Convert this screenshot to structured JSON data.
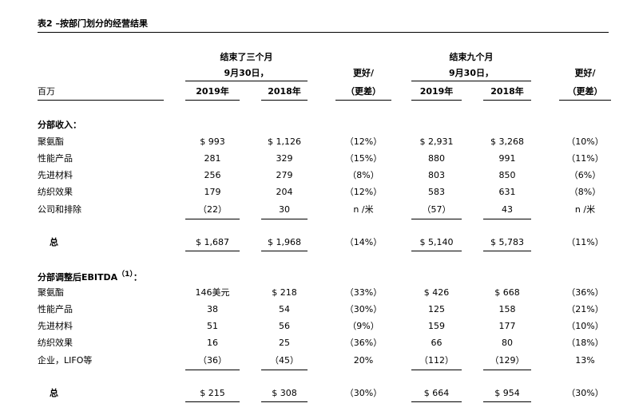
{
  "title": "表2 –按部门划分的经营结果",
  "table": {
    "header": {
      "group_1": [
        "结束了三个月",
        "9月30日，"
      ],
      "change_1": [
        "更好/",
        "（更差）"
      ],
      "group_2": [
        "结束九个月",
        "9月30日，"
      ],
      "change_2": [
        "更好/",
        "（更差）"
      ],
      "unit": "百万",
      "years": [
        "2019年",
        "2018年",
        "2019年",
        "2018年"
      ]
    },
    "sections": [
      {
        "heading": "分部收入：",
        "rows": [
          {
            "label": "聚氨酯",
            "cells": [
              "$ 993",
              "$ 1,126",
              "（12%）",
              "$ 2,931",
              "$ 3,268",
              "（10%）"
            ]
          },
          {
            "label": "性能产品",
            "cells": [
              "281",
              "329",
              "（15%）",
              "880",
              "991",
              "（11%）"
            ]
          },
          {
            "label": "先进材料",
            "cells": [
              "256",
              "279",
              "（8%）",
              "803",
              "850",
              "（6%）"
            ]
          },
          {
            "label": "纺织效果",
            "cells": [
              "179",
              "204",
              "（12%）",
              "583",
              "631",
              "（8%）"
            ]
          },
          {
            "label": "公司和排除",
            "cells": [
              "（22）",
              "30",
              "n /米",
              "（57）",
              "43",
              "n /米"
            ]
          }
        ],
        "total": {
          "label": "总",
          "cells": [
            "$ 1,687",
            "$ 1,968",
            "（14%）",
            "$ 5,140",
            "$ 5,783",
            "（11%）"
          ]
        }
      },
      {
        "heading": "分部调整后EBITDA",
        "note": "（1）",
        "suffix": "：",
        "rows": [
          {
            "label": "聚氨酯",
            "cells": [
              "146美元",
              "$ 218",
              "（33%）",
              "$ 426",
              "$ 668",
              "（36%）"
            ]
          },
          {
            "label": "性能产品",
            "cells": [
              "38",
              "54",
              "（30%）",
              "125",
              "158",
              "（21%）"
            ]
          },
          {
            "label": "先进材料",
            "cells": [
              "51",
              "56",
              "（9%）",
              "159",
              "177",
              "（10%）"
            ]
          },
          {
            "label": "纺织效果",
            "cells": [
              "16",
              "25",
              "（36%）",
              "66",
              "80",
              "（18%）"
            ]
          },
          {
            "label": "企业，LIFO等",
            "cells": [
              "（36）",
              "（45）",
              "20%",
              "（112）",
              "（129）",
              "13%"
            ]
          }
        ],
        "total": {
          "label": "总",
          "cells": [
            "$ 215",
            "$ 308",
            "（30%）",
            "$ 664",
            "$ 954",
            "（30%）"
          ]
        }
      }
    ]
  }
}
